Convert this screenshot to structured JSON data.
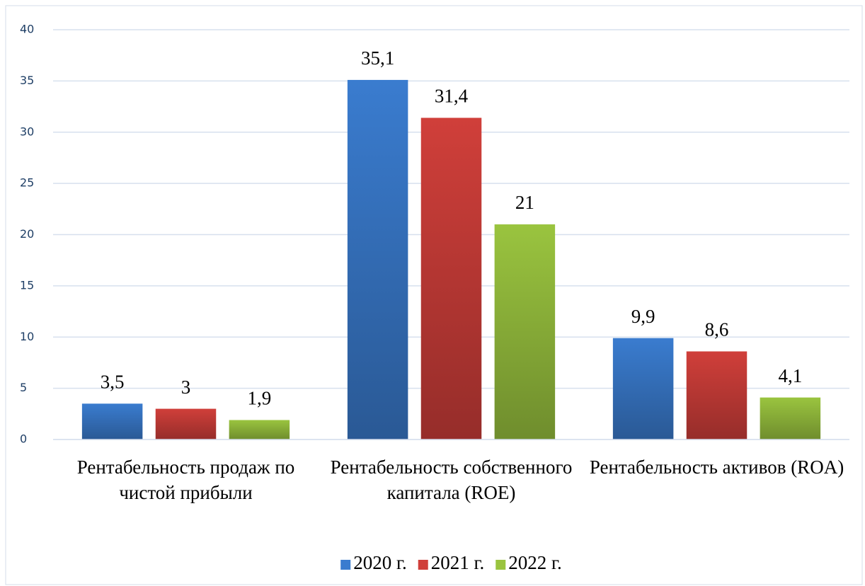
{
  "chart_data": {
    "type": "bar",
    "categories": [
      "Рентабельность продаж по чистой прибыли",
      "Рентабельность собственного капитала (ROE)",
      "Рентабельность активов (ROA)"
    ],
    "series": [
      {
        "name": "2020 г.",
        "color": "#3a7ccf",
        "values": [
          3.5,
          35.1,
          9.9
        ],
        "value_labels": [
          "3,5",
          "35,1",
          "9,9"
        ]
      },
      {
        "name": "2021 г.",
        "color": "#d03f3a",
        "values": [
          3,
          31.4,
          8.6
        ],
        "value_labels": [
          "3",
          "31,4",
          "8,6"
        ]
      },
      {
        "name": "2022 г.",
        "color": "#9ac43f",
        "values": [
          1.9,
          21,
          4.1
        ],
        "value_labels": [
          "1,9",
          "21",
          "4,1"
        ]
      }
    ],
    "ylim": [
      0,
      40
    ],
    "yticks": [
      0,
      5,
      10,
      15,
      20,
      25,
      30,
      35,
      40
    ],
    "grid": true,
    "legend": "bottom"
  }
}
